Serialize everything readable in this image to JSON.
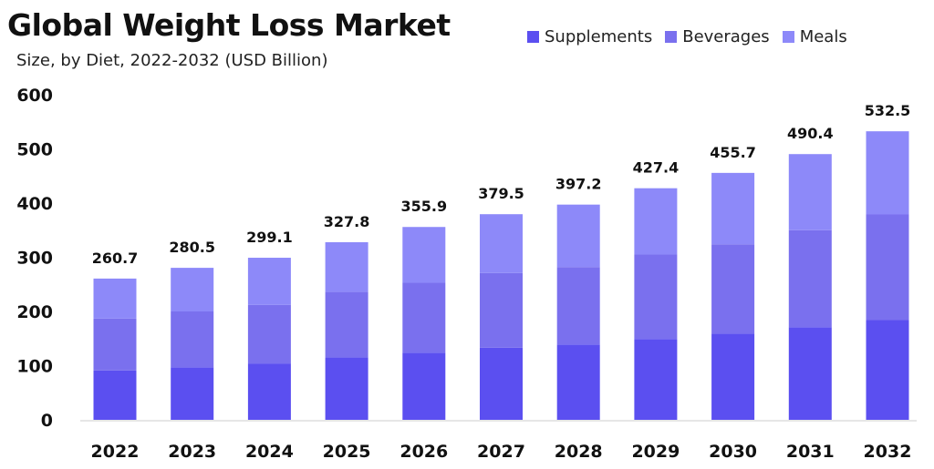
{
  "chart_data": {
    "type": "bar",
    "stacked": true,
    "title": "Global Weight Loss Market",
    "subtitle": "Size, by Diet, 2022-2032 (USD Billion)",
    "xlabel": "",
    "ylabel": "",
    "ylim": [
      0,
      600
    ],
    "yticks": [
      0,
      100,
      200,
      300,
      400,
      500,
      600
    ],
    "grid": false,
    "legend_position": "top-right",
    "categories": [
      "2022",
      "2023",
      "2024",
      "2025",
      "2026",
      "2027",
      "2028",
      "2029",
      "2030",
      "2031",
      "2032"
    ],
    "series": [
      {
        "name": "Supplements",
        "color": "#5b4ff0",
        "values": [
          91,
          97,
          104,
          115,
          124,
          133,
          139,
          149,
          159,
          171,
          184
        ]
      },
      {
        "name": "Beverages",
        "color": "#7a70ee",
        "values": [
          96,
          103,
          108,
          121,
          129,
          138,
          143,
          156,
          165,
          179,
          195
        ]
      },
      {
        "name": "Meals",
        "color": "#8d89f9",
        "values": [
          73.7,
          80.5,
          87.1,
          91.8,
          102.9,
          108.5,
          115.2,
          122.4,
          131.7,
          140.4,
          153.5
        ]
      }
    ],
    "totals": [
      "260.7",
      "280.5",
      "299.1",
      "327.8",
      "355.9",
      "379.5",
      "397.2",
      "427.4",
      "455.7",
      "490.4",
      "532.5"
    ]
  }
}
